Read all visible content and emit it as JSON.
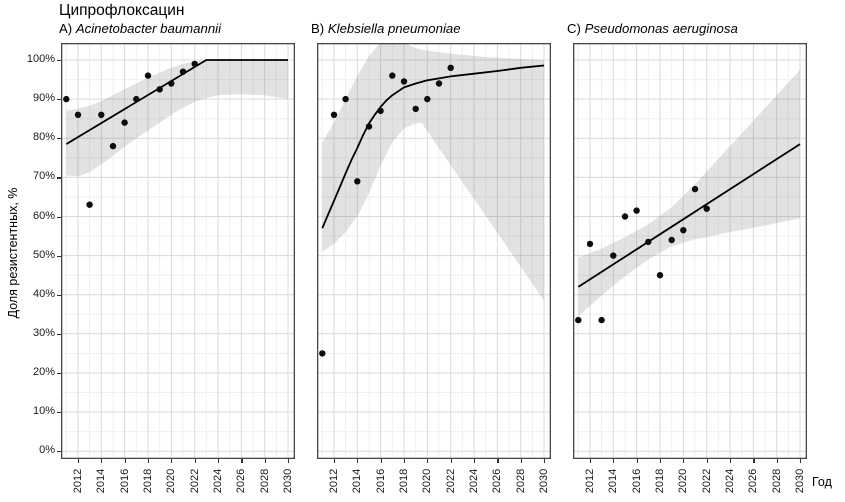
{
  "chart_data": {
    "type": "scatter",
    "title": "Ципрофлоксацин",
    "ylabel": "Доля резистентных, %",
    "xlabel": "Год",
    "xlim": [
      2011,
      2030.6
    ],
    "ylim": [
      -2,
      102.3
    ],
    "grid": true,
    "legend": false,
    "x_ticks": [
      2012,
      2014,
      2016,
      2018,
      2020,
      2022,
      2024,
      2026,
      2028,
      2030
    ],
    "y_ticks": [
      0,
      10,
      20,
      30,
      40,
      50,
      60,
      70,
      80,
      90,
      100
    ],
    "style": {
      "point_color": "#0d0d0d",
      "line_color": "#000000",
      "band_color": "rgba(125,125,125,0.22)",
      "grid_major": "#d9d9d9",
      "grid_minor": "#efefef",
      "border_color": "#454545",
      "tick_color": "#333333"
    },
    "panels": [
      {
        "id": "A",
        "label_prefix": "A) ",
        "organism": "Acinetobacter baumannii",
        "points": {
          "years": [
            2011,
            2012,
            2013,
            2014,
            2015,
            2016,
            2017,
            2018,
            2019,
            2020,
            2021,
            2022
          ],
          "values": [
            90,
            86,
            63,
            86,
            78,
            84,
            90,
            96,
            92.5,
            94,
            97,
            99
          ]
        },
        "trend": [
          [
            2011,
            78.5
          ],
          [
            2023,
            100
          ],
          [
            2030,
            100
          ]
        ],
        "band": {
          "years": [
            2011,
            2012,
            2013,
            2014,
            2015,
            2016,
            2017,
            2018,
            2019,
            2020,
            2021,
            2022,
            2023,
            2024,
            2026,
            2028,
            2030
          ],
          "upper": [
            87,
            87.5,
            88.3,
            89.5,
            91,
            92.5,
            94,
            95.5,
            96.8,
            98,
            99,
            99.7,
            100,
            100,
            100,
            100,
            100
          ],
          "lower": [
            70.5,
            70.2,
            71.3,
            73.3,
            75.5,
            77.8,
            80,
            82,
            84,
            86,
            87.8,
            89.3,
            90.3,
            91,
            91.2,
            91,
            90
          ]
        }
      },
      {
        "id": "B",
        "label_prefix": "B) ",
        "organism": "Klebsiella pneumoniae",
        "points": {
          "years": [
            2011,
            2012,
            2013,
            2014,
            2015,
            2016,
            2017,
            2018,
            2019,
            2020,
            2021,
            2022
          ],
          "values": [
            25,
            86,
            90,
            69,
            83,
            87,
            96,
            94.5,
            87.5,
            90,
            94,
            98
          ]
        },
        "trend": [
          [
            2011,
            57
          ],
          [
            2011.5,
            60.5
          ],
          [
            2012,
            64
          ],
          [
            2012.5,
            67.5
          ],
          [
            2013,
            71
          ],
          [
            2013.5,
            74.5
          ],
          [
            2014,
            77.5
          ],
          [
            2014.5,
            80.8
          ],
          [
            2015,
            83.8
          ],
          [
            2015.5,
            86
          ],
          [
            2016,
            88
          ],
          [
            2016.5,
            89.7
          ],
          [
            2017,
            91
          ],
          [
            2018,
            93
          ],
          [
            2019,
            94
          ],
          [
            2020,
            94.8
          ],
          [
            2021,
            95.3
          ],
          [
            2022,
            95.8
          ],
          [
            2024,
            96.5
          ],
          [
            2026,
            97.2
          ],
          [
            2028,
            98
          ],
          [
            2030,
            98.6
          ]
        ],
        "band": {
          "years": [
            2011,
            2012,
            2013,
            2014,
            2015,
            2016,
            2017,
            2018,
            2019,
            2019.5,
            2021,
            2023,
            2025,
            2027,
            2030
          ],
          "upper": [
            79,
            84,
            90,
            96,
            101,
            104.5,
            104.5,
            104.5,
            103,
            102.6,
            102,
            101.3,
            100.8,
            100.4,
            100
          ],
          "lower": [
            51,
            53,
            56,
            60,
            66,
            73,
            79,
            82.5,
            83.8,
            84,
            77.5,
            68.8,
            60.2,
            51.5,
            38.5
          ]
        }
      },
      {
        "id": "C",
        "label_prefix": "C) ",
        "organism": "Pseudomonas aeruginosa",
        "points": {
          "years": [
            2011,
            2012,
            2013,
            2014,
            2015,
            2016,
            2017,
            2018,
            2019,
            2020,
            2021,
            2022
          ],
          "values": [
            33.5,
            53,
            33.5,
            50,
            60,
            61.5,
            53.5,
            45,
            54,
            56.5,
            67,
            62
          ]
        },
        "trend": [
          [
            2011,
            42
          ],
          [
            2030,
            78.5
          ]
        ],
        "band": {
          "years": [
            2011,
            2013,
            2015,
            2017,
            2019,
            2021,
            2024,
            2027,
            2030
          ],
          "upper": [
            49.5,
            51.8,
            54.7,
            58,
            62.4,
            68.2,
            78,
            87.7,
            97.5
          ],
          "lower": [
            34.5,
            39.8,
            44.7,
            49,
            52.4,
            54.2,
            56,
            57.7,
            59.5
          ]
        }
      }
    ]
  }
}
